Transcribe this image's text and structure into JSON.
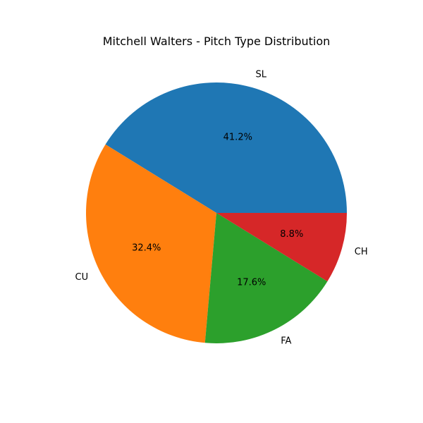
{
  "chart_data": {
    "type": "pie",
    "title": "Mitchell Walters - Pitch Type Distribution",
    "categories": [
      "SL",
      "CU",
      "FA",
      "CH"
    ],
    "values": [
      41.2,
      32.4,
      17.6,
      8.8
    ],
    "percent_labels": [
      "41.2%",
      "32.4%",
      "17.6%",
      "8.8%"
    ],
    "colors": [
      "#1f77b4",
      "#ff7f0e",
      "#2ca02c",
      "#d62728"
    ],
    "start_angle_deg": 0,
    "direction": "counterclockwise",
    "legend": "none"
  }
}
